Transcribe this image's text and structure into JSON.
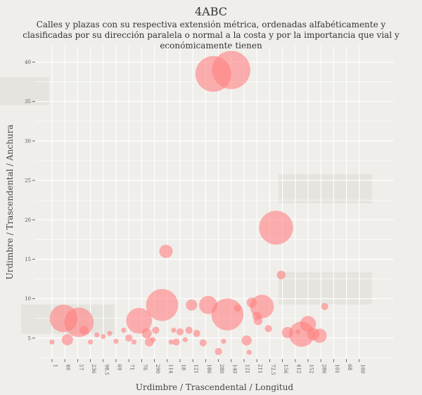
{
  "title": "4ABC",
  "subtitle": "Calles y plazas con su respectiva extensión métrica, ordenadas alfabéticamente y clasificadas por su dirección paralela o normal a la costa y por la importancia que vial y económicamente tienen",
  "chart_data": {
    "type": "scatter",
    "xlabel": "Urdimbre / Trascendental / Longitud",
    "ylabel": "Urdimbre / Trascendental / Anchura",
    "x_ticks": [
      "1",
      "46",
      "57",
      "236",
      "98.5",
      "69",
      "71",
      "76",
      "290",
      "114",
      "18",
      "121",
      "186",
      "280",
      "140",
      "121",
      "211",
      "72.5",
      "156",
      "412",
      "152",
      "286",
      "101",
      "68",
      "160"
    ],
    "ylim": [
      2.5,
      42
    ],
    "y_ticks": [
      5,
      10,
      15,
      20,
      25,
      30,
      35,
      40
    ],
    "marker_color": "#ff8080",
    "points": [
      {
        "x": 1,
        "y": 4.5,
        "size": 1
      },
      {
        "x": 1.9,
        "y": 7.5,
        "size": 30
      },
      {
        "x": 2.2,
        "y": 4.8,
        "size": 5
      },
      {
        "x": 3.1,
        "y": 7.0,
        "size": 34
      },
      {
        "x": 3.5,
        "y": 6.0,
        "size": 3
      },
      {
        "x": 4.0,
        "y": 4.5,
        "size": 1
      },
      {
        "x": 4.5,
        "y": 5.4,
        "size": 1
      },
      {
        "x": 5.0,
        "y": 5.2,
        "size": 1
      },
      {
        "x": 5.5,
        "y": 5.6,
        "size": 1
      },
      {
        "x": 6.0,
        "y": 4.6,
        "size": 1
      },
      {
        "x": 6.6,
        "y": 6.0,
        "size": 1
      },
      {
        "x": 7.0,
        "y": 5.0,
        "size": 2
      },
      {
        "x": 7.4,
        "y": 4.5,
        "size": 1
      },
      {
        "x": 7.8,
        "y": 7.2,
        "size": 26
      },
      {
        "x": 8.4,
        "y": 5.6,
        "size": 4
      },
      {
        "x": 8.6,
        "y": 4.5,
        "size": 3
      },
      {
        "x": 8.9,
        "y": 4.8,
        "size": 1
      },
      {
        "x": 9.1,
        "y": 6.0,
        "size": 2
      },
      {
        "x": 9.6,
        "y": 9.2,
        "size": 40
      },
      {
        "x": 9.9,
        "y": 16.0,
        "size": 7
      },
      {
        "x": 10.3,
        "y": 4.5,
        "size": 1
      },
      {
        "x": 10.5,
        "y": 6.0,
        "size": 1
      },
      {
        "x": 10.7,
        "y": 4.5,
        "size": 2
      },
      {
        "x": 11.0,
        "y": 5.8,
        "size": 2
      },
      {
        "x": 11.4,
        "y": 4.8,
        "size": 1
      },
      {
        "x": 11.7,
        "y": 6.0,
        "size": 2
      },
      {
        "x": 11.9,
        "y": 9.2,
        "size": 5
      },
      {
        "x": 12.3,
        "y": 5.6,
        "size": 2
      },
      {
        "x": 12.8,
        "y": 4.4,
        "size": 2
      },
      {
        "x": 13.2,
        "y": 9.2,
        "size": 13
      },
      {
        "x": 13.6,
        "y": 38.5,
        "size": 50
      },
      {
        "x": 14.0,
        "y": 3.3,
        "size": 2
      },
      {
        "x": 14.4,
        "y": 4.6,
        "size": 1
      },
      {
        "x": 14.7,
        "y": 8.0,
        "size": 40
      },
      {
        "x": 15.0,
        "y": 39.0,
        "size": 57
      },
      {
        "x": 15.5,
        "y": 8.8,
        "size": 2
      },
      {
        "x": 16.2,
        "y": 4.7,
        "size": 4
      },
      {
        "x": 16.6,
        "y": 9.5,
        "size": 4
      },
      {
        "x": 16.4,
        "y": 3.2,
        "size": 1
      },
      {
        "x": 17.0,
        "y": 7.8,
        "size": 3
      },
      {
        "x": 17.1,
        "y": 7.2,
        "size": 3
      },
      {
        "x": 17.4,
        "y": 9.0,
        "size": 22
      },
      {
        "x": 17.9,
        "y": 6.2,
        "size": 2
      },
      {
        "x": 18.5,
        "y": 19.0,
        "size": 45
      },
      {
        "x": 18.9,
        "y": 13.0,
        "size": 3
      },
      {
        "x": 19.4,
        "y": 5.7,
        "size": 5
      },
      {
        "x": 20.2,
        "y": 5.8,
        "size": 1
      },
      {
        "x": 20.5,
        "y": 5.5,
        "size": 25
      },
      {
        "x": 21.0,
        "y": 6.8,
        "size": 10
      },
      {
        "x": 21.4,
        "y": 5.5,
        "size": 6
      },
      {
        "x": 21.9,
        "y": 5.3,
        "size": 8
      },
      {
        "x": 22.3,
        "y": 9.0,
        "size": 2
      }
    ]
  }
}
